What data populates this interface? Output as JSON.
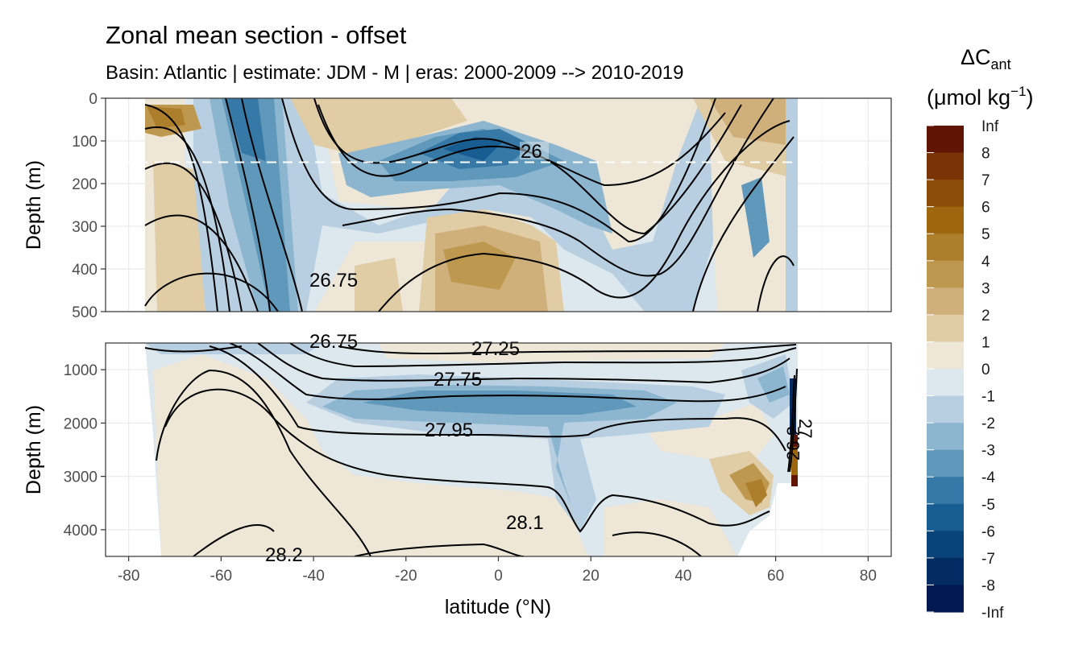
{
  "title": "Zonal mean section - offset",
  "subtitle": "Basin: Atlantic | estimate: JDM - M | eras: 2000-2009 --> 2010-2019",
  "chart_data": {
    "type": "heatmap",
    "xlabel": "latitude (°N)",
    "ylabel": "Depth (m)",
    "xlim": [
      -85,
      85
    ],
    "x_ticks": [
      "-80",
      "-60",
      "-40",
      "-20",
      "0",
      "20",
      "40",
      "60",
      "80"
    ],
    "panels": [
      {
        "name": "upper",
        "ylim": [
          500,
          0
        ],
        "y_ticks": [
          "0",
          "100",
          "200",
          "300",
          "400",
          "500"
        ],
        "reference_line_depth": 150,
        "contour_labels": [
          "26",
          "26.75"
        ]
      },
      {
        "name": "lower",
        "ylim": [
          4500,
          500
        ],
        "y_ticks": [
          "1000",
          "2000",
          "3000",
          "4000"
        ],
        "contour_labels": [
          "26.75",
          "27.25",
          "27.75",
          "27.95",
          "28.1",
          "28.2",
          "26.2",
          "27"
        ]
      }
    ],
    "legend": {
      "title_main": "ΔC",
      "title_sub": "ant",
      "unit_pre": "(μmol kg",
      "unit_sup": "−1",
      "unit_post": ")",
      "labels": [
        "Inf",
        "8",
        "7",
        "6",
        "5",
        "4",
        "3",
        "2",
        "1",
        "0",
        "-1",
        "-2",
        "-3",
        "-4",
        "-5",
        "-6",
        "-7",
        "-8",
        "-Inf"
      ],
      "colors": [
        "#5f1404",
        "#7a3307",
        "#8b4c09",
        "#9e660f",
        "#ad7e2b",
        "#bf9850",
        "#cfb07b",
        "#e0cda6",
        "#eee6d6",
        "#dde7ee",
        "#b7cfe0",
        "#8cb5cf",
        "#5f98ba",
        "#3679a7",
        "#175d92",
        "#084479",
        "#032c63",
        "#011851"
      ],
      "position": "right"
    },
    "grid": true
  }
}
